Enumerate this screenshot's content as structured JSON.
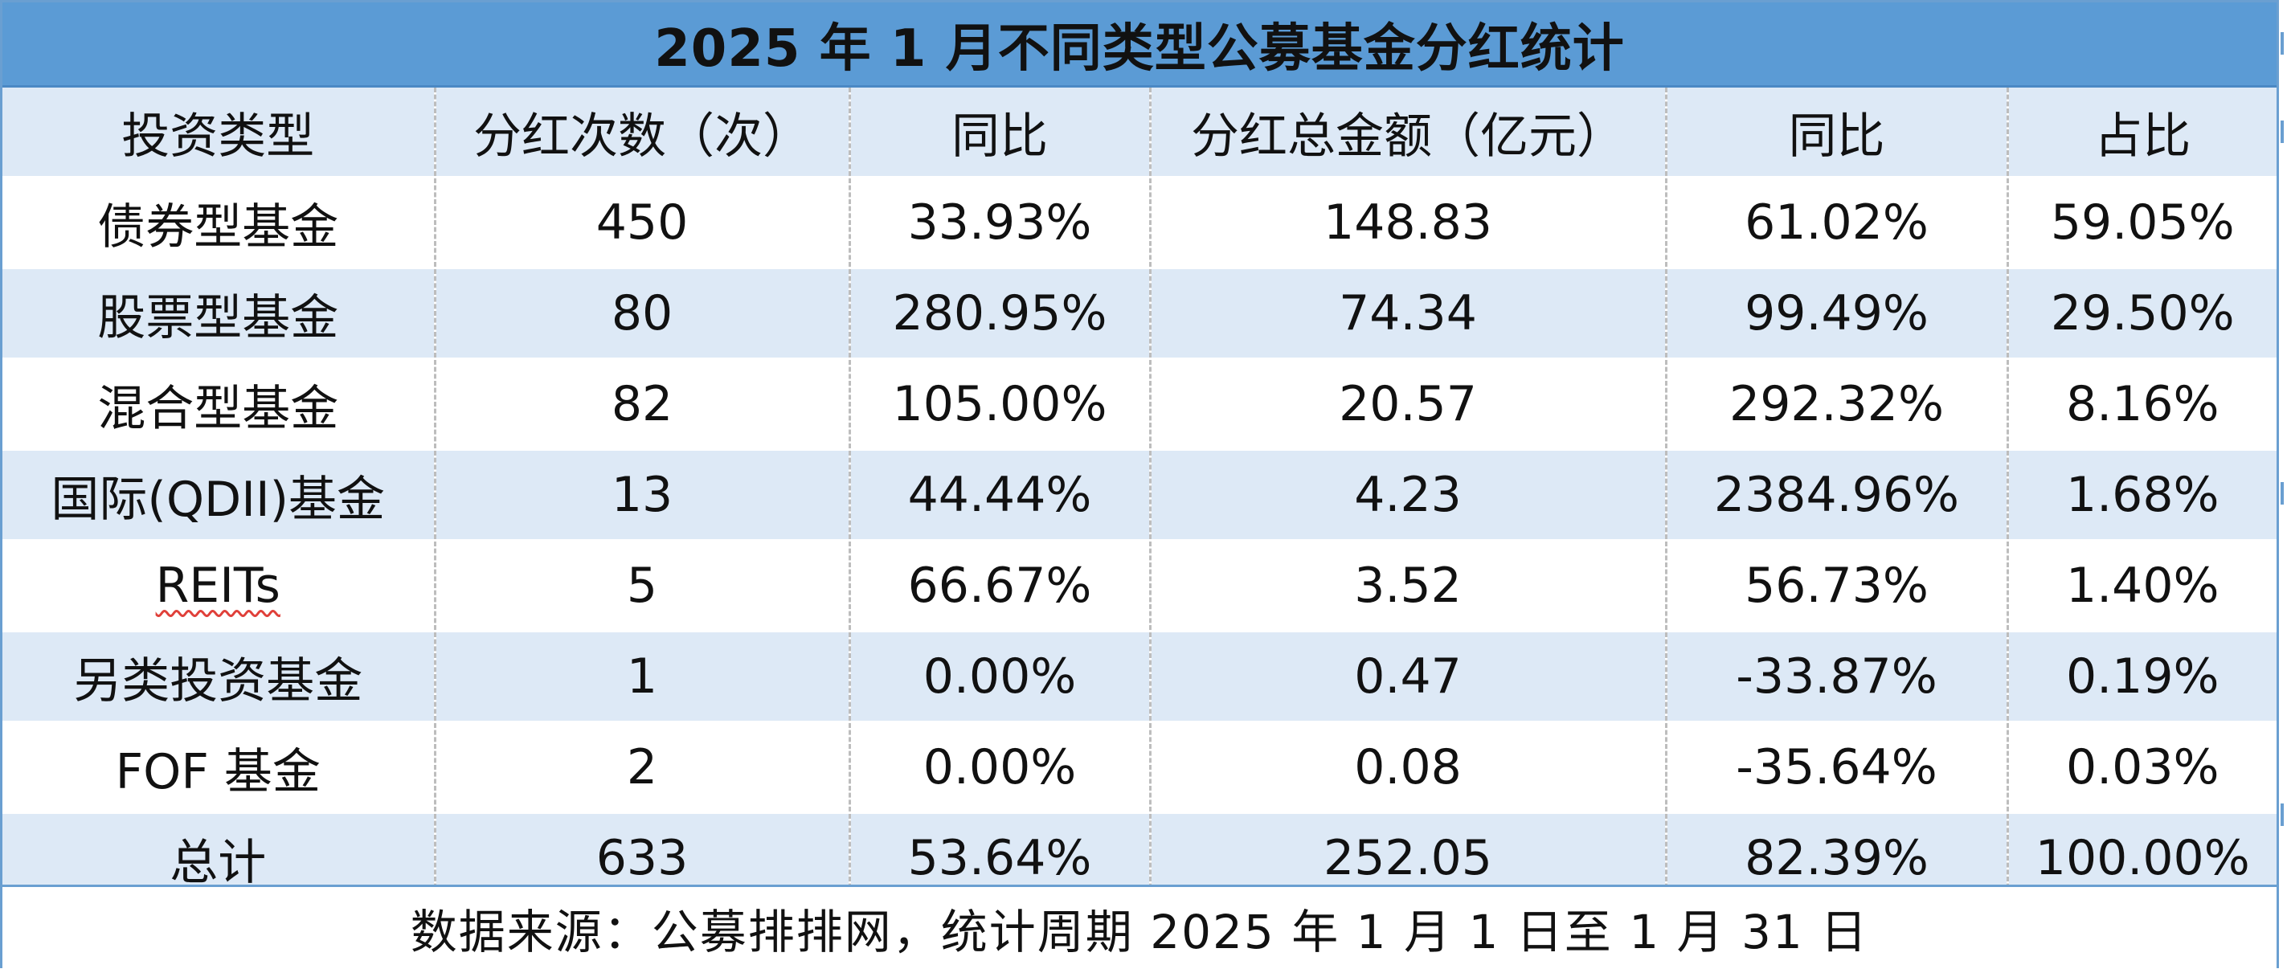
{
  "title": "2025 年 1 月不同类型公募基金分红统计",
  "table": {
    "headers": [
      "投资类型",
      "分红次数（次）",
      "同比",
      "分红总金额（亿元）",
      "同比",
      "占比"
    ],
    "rows": [
      [
        "债券型基金",
        "450",
        "33.93%",
        "148.83",
        "61.02%",
        "59.05%"
      ],
      [
        "股票型基金",
        "80",
        "280.95%",
        "74.34",
        "99.49%",
        "29.50%"
      ],
      [
        "混合型基金",
        "82",
        "105.00%",
        "20.57",
        "292.32%",
        "8.16%"
      ],
      [
        "国际(QDII)基金",
        "13",
        "44.44%",
        "4.23",
        "2384.96%",
        "1.68%"
      ],
      [
        "REITs",
        "5",
        "66.67%",
        "3.52",
        "56.73%",
        "1.40%"
      ],
      [
        "另类投资基金",
        "1",
        "0.00%",
        "0.47",
        "-33.87%",
        "0.19%"
      ],
      [
        "FOF 基金",
        "2",
        "0.00%",
        "0.08",
        "-35.64%",
        "0.03%"
      ],
      [
        "总计",
        "633",
        "53.64%",
        "252.05",
        "82.39%",
        "100.00%"
      ]
    ]
  },
  "footer": "数据来源：公募排排网，统计周期 2025 年 1 月 1 日至 1 月 31 日",
  "colors": {
    "title_bar": "#5b9bd5",
    "band_row": "#dde9f6",
    "plain_row": "#ffffff",
    "spellcheck_underline": "#e0403a"
  }
}
